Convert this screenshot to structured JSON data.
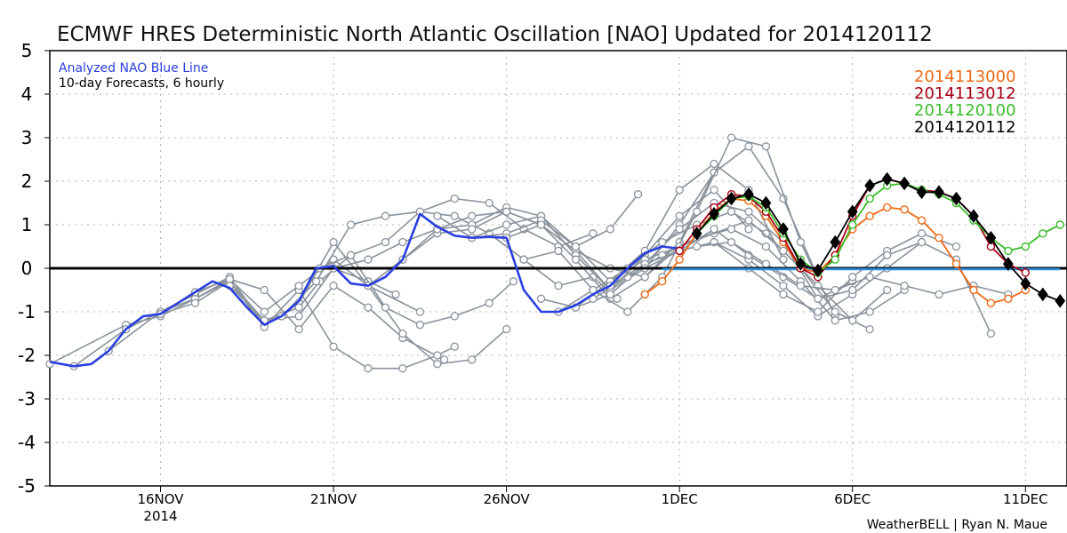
{
  "chart_data": {
    "type": "line",
    "title": "ECMWF HRES Deterministic North Atlantic Oscillation [NAO] Updated for 2014120112",
    "ylim": [
      -5,
      5
    ],
    "y_ticks": [
      "5",
      "4",
      "3",
      "2",
      "1",
      "0",
      "-1",
      "-2",
      "-3",
      "-4",
      "-5"
    ],
    "y_tick_values": [
      5,
      4,
      3,
      2,
      1,
      0,
      -1,
      -2,
      -3,
      -4,
      -5
    ],
    "x_tick_labels": [
      "16NOV",
      "21NOV",
      "26NOV",
      "1DEC",
      "6DEC",
      "11DEC"
    ],
    "x_year_label": "2014",
    "x_domain_days": [
      -3.2,
      26.2
    ],
    "x_tick_days": [
      0,
      5,
      10,
      15,
      20,
      25
    ],
    "x_grid_days": [
      0,
      5,
      10,
      15,
      20,
      25
    ],
    "grid": "dotted",
    "annotation_title": "Analyzed NAO Blue Line",
    "annotation_sub": "10-day Forecasts, 6 hourly",
    "credit": "WeatherBELL | Ryan N. Maue",
    "legend_position": "top-right",
    "legend": [
      {
        "label": "2014113000",
        "color": "#ee6a15"
      },
      {
        "label": "2014113012",
        "color": "#a80016"
      },
      {
        "label": "2014120100",
        "color": "#3bbd2b"
      },
      {
        "label": "2014120112",
        "color": "#000000"
      }
    ],
    "colors": {
      "analysis": "#2a3fe0",
      "past_forecasts": "#8a939c",
      "zero_line": "#000000",
      "forecast_mean": "#2c8ee0"
    },
    "analysis": {
      "name": "Analyzed NAO Blue Line",
      "x": [
        -3.2,
        -2.5,
        -2,
        -1.5,
        -1,
        -0.5,
        0,
        0.5,
        1,
        1.5,
        2,
        2.5,
        3,
        3.5,
        4,
        4.5,
        5,
        5.5,
        6,
        6.5,
        7,
        7.5,
        8,
        8.5,
        9,
        9.5,
        10,
        10.5,
        11,
        11.5,
        12,
        12.5,
        13,
        13.5,
        14,
        14.5,
        15
      ],
      "y": [
        -2.15,
        -2.25,
        -2.2,
        -1.9,
        -1.4,
        -1.1,
        -1.05,
        -0.8,
        -0.55,
        -0.3,
        -0.45,
        -0.9,
        -1.3,
        -1.1,
        -0.75,
        0.0,
        0.05,
        -0.35,
        -0.4,
        -0.2,
        0.2,
        1.25,
        0.95,
        0.75,
        0.7,
        0.72,
        0.7,
        -0.5,
        -1.0,
        -1.0,
        -0.85,
        -0.6,
        -0.4,
        0.0,
        0.35,
        0.5,
        0.45
      ]
    },
    "past_forecasts": [
      {
        "x": [
          -3.2,
          -1,
          0,
          1,
          2,
          3,
          4,
          5,
          6,
          6.8
        ],
        "y": [
          -2.2,
          -1.3,
          -1.1,
          -0.7,
          -0.3,
          -1.2,
          -1.1,
          0.0,
          -0.3,
          -0.6
        ]
      },
      {
        "x": [
          -2.5,
          -1,
          0,
          1,
          2,
          3,
          4,
          5,
          6,
          7.5
        ],
        "y": [
          -2.25,
          -1.4,
          -1.0,
          -0.6,
          -0.2,
          -1.3,
          -0.8,
          0.6,
          -0.4,
          -1.0
        ]
      },
      {
        "x": [
          -1.5,
          0,
          1,
          2,
          3,
          4,
          5,
          6,
          7,
          8.2
        ],
        "y": [
          -1.9,
          -1.0,
          -0.7,
          -0.25,
          -0.5,
          -1.4,
          -0.4,
          -0.9,
          -1.6,
          -2.1
        ]
      },
      {
        "x": [
          0,
          1,
          2,
          3,
          4,
          5,
          6,
          7,
          8,
          8.5
        ],
        "y": [
          -1.05,
          -0.8,
          -0.3,
          -1.35,
          -0.5,
          -1.8,
          -2.3,
          -2.3,
          -2.0,
          -1.8
        ]
      },
      {
        "x": [
          1,
          2,
          3,
          4,
          5,
          6,
          7,
          8,
          9,
          10
        ],
        "y": [
          -0.55,
          -0.25,
          -1.0,
          -0.4,
          0.2,
          -0.4,
          -1.5,
          -2.2,
          -2.1,
          -1.4
        ]
      },
      {
        "x": [
          2,
          3,
          4,
          4.6,
          5.5,
          6.5,
          7.5,
          8.5,
          9.5,
          10.2
        ],
        "y": [
          -0.4,
          -1.2,
          -0.9,
          -0.3,
          0.3,
          -0.9,
          -1.3,
          -1.1,
          -0.8,
          -0.3
        ]
      },
      {
        "x": [
          3.5,
          4.5,
          5.5,
          6.5,
          7.5,
          8.5,
          9.5,
          10.5,
          11.5,
          12.5
        ],
        "y": [
          -1.1,
          -0.3,
          1.0,
          1.2,
          1.3,
          1.6,
          1.5,
          0.9,
          0.5,
          0.8
        ]
      },
      {
        "x": [
          4.6,
          5.5,
          6.5,
          7.5,
          8.5,
          9.5,
          10.5,
          11.5,
          12.5,
          13.2
        ],
        "y": [
          0.0,
          0.3,
          0.6,
          1.3,
          1.2,
          0.8,
          0.2,
          -0.4,
          -0.2,
          -0.7
        ]
      },
      {
        "x": [
          5,
          6,
          7,
          8,
          9,
          10,
          11,
          12,
          13,
          13.8
        ],
        "y": [
          0.0,
          0.2,
          0.6,
          0.9,
          1.0,
          1.4,
          1.2,
          0.5,
          0.9,
          1.7
        ]
      },
      {
        "x": [
          6,
          7,
          8,
          9,
          10,
          11,
          12,
          13,
          14,
          15
        ],
        "y": [
          -0.4,
          0.2,
          0.8,
          0.9,
          1.3,
          1.0,
          0.4,
          0.0,
          -0.2,
          0.5
        ]
      },
      {
        "x": [
          7,
          8,
          9,
          10,
          11,
          12,
          13,
          14,
          15,
          16
        ],
        "y": [
          0.2,
          0.9,
          1.2,
          1.3,
          1.0,
          0.4,
          -0.5,
          0.0,
          1.0,
          2.2
        ]
      },
      {
        "x": [
          8,
          9,
          10,
          11,
          12,
          13,
          14,
          15,
          16,
          17
        ],
        "y": [
          1.2,
          0.7,
          1.0,
          1.2,
          0.3,
          -0.5,
          0.3,
          1.2,
          1.8,
          0.9
        ]
      },
      {
        "x": [
          9,
          10,
          11,
          12,
          13,
          14,
          15,
          16,
          17,
          18
        ],
        "y": [
          0.7,
          0.8,
          1.1,
          0.5,
          -0.3,
          0.4,
          1.8,
          2.4,
          1.8,
          0.2
        ]
      },
      {
        "x": [
          10,
          11,
          12,
          13,
          14,
          15,
          16,
          17,
          18,
          19
        ],
        "y": [
          0.7,
          1.0,
          0.2,
          -0.7,
          -0.2,
          0.6,
          2.2,
          2.8,
          1.6,
          -0.2
        ]
      },
      {
        "x": [
          10.5,
          11.5,
          12.5,
          13.5,
          14.5,
          15.5,
          16.5,
          17.5,
          18.5,
          19.5
        ],
        "y": [
          0.2,
          0.4,
          -0.5,
          -1.0,
          -0.2,
          1.3,
          3.0,
          2.8,
          0.6,
          -1.1
        ]
      },
      {
        "x": [
          11,
          12,
          13,
          14,
          15,
          16,
          17,
          18,
          19,
          20
        ],
        "y": [
          -0.7,
          -0.9,
          -0.6,
          0.1,
          0.9,
          1.5,
          1.3,
          0.6,
          -0.7,
          -0.3
        ]
      },
      {
        "x": [
          11.5,
          12.5,
          13.5,
          14.5,
          15.5,
          16.5,
          17.5,
          18.5,
          19.5,
          20.5
        ],
        "y": [
          -1.0,
          -0.5,
          0.0,
          0.6,
          1.0,
          1.3,
          0.8,
          0.0,
          -1.0,
          -1.4
        ]
      },
      {
        "x": [
          12,
          13,
          14,
          15,
          16,
          17,
          18,
          19,
          20,
          21
        ],
        "y": [
          -0.9,
          -0.3,
          0.2,
          0.5,
          0.8,
          1.1,
          0.4,
          -0.4,
          -1.2,
          -0.5
        ]
      },
      {
        "x": [
          12.5,
          13.5,
          14.5,
          15.5,
          16.5,
          17.5,
          18.5,
          19.5,
          20.5,
          21.5
        ],
        "y": [
          -0.7,
          -0.2,
          0.3,
          0.7,
          0.9,
          0.5,
          -0.3,
          -1.2,
          -1.0,
          -0.5
        ]
      },
      {
        "x": [
          13,
          14,
          15,
          16,
          17,
          18,
          19,
          20,
          21,
          22
        ],
        "y": [
          -0.4,
          0.1,
          0.4,
          0.6,
          0.2,
          -0.4,
          -1.1,
          -0.6,
          0.0,
          0.6
        ]
      },
      {
        "x": [
          14,
          15,
          16,
          17,
          18,
          19,
          20,
          21,
          22,
          23
        ],
        "y": [
          0.0,
          0.4,
          0.6,
          0.0,
          -0.6,
          -1.0,
          -0.2,
          0.4,
          0.8,
          0.5
        ]
      },
      {
        "x": [
          15,
          16,
          17,
          18,
          19,
          20,
          21,
          22,
          23,
          24
        ],
        "y": [
          0.4,
          0.9,
          0.3,
          -0.2,
          -0.7,
          -0.5,
          0.3,
          0.6,
          0.2,
          -1.5
        ]
      },
      {
        "x": [
          15.5,
          16.5,
          17.5,
          18.5,
          19.5,
          20.5,
          21.5,
          22.5,
          23.5,
          24.5
        ],
        "y": [
          0.5,
          0.6,
          0.1,
          -0.4,
          -0.5,
          -0.2,
          -0.4,
          -0.6,
          -0.4,
          -0.6
        ]
      }
    ],
    "forecasts": [
      {
        "name": "2014113000",
        "color": "#ee6a15",
        "marker": "open-circle",
        "x": [
          14,
          14.5,
          15,
          15.5,
          16,
          16.5,
          17,
          17.5,
          18,
          18.5,
          19,
          19.5,
          20,
          20.5,
          21,
          21.5,
          22,
          22.5,
          23,
          23.5,
          24,
          24.5,
          25
        ],
        "y": [
          -0.6,
          -0.3,
          0.2,
          0.8,
          1.3,
          1.6,
          1.55,
          1.2,
          0.6,
          0.0,
          -0.1,
          0.3,
          0.9,
          1.2,
          1.4,
          1.35,
          1.1,
          0.7,
          0.1,
          -0.5,
          -0.8,
          -0.7,
          -0.5
        ]
      },
      {
        "name": "2014113012",
        "color": "#a80016",
        "marker": "open-circle",
        "x": [
          15,
          15.5,
          16,
          16.5,
          17,
          17.5,
          18,
          18.5,
          19,
          19.5,
          20,
          20.5,
          21,
          21.5,
          22,
          22.5,
          23,
          23.5,
          24,
          24.5,
          25
        ],
        "y": [
          0.4,
          0.9,
          1.4,
          1.7,
          1.65,
          1.3,
          0.7,
          0.0,
          -0.2,
          0.3,
          1.2,
          1.9,
          2.05,
          1.95,
          1.8,
          1.75,
          1.6,
          1.2,
          0.5,
          0.1,
          -0.1
        ]
      },
      {
        "name": "2014120100",
        "color": "#3bbd2b",
        "marker": "open-circle",
        "x": [
          15.5,
          16,
          16.5,
          17,
          17.5,
          18,
          18.5,
          19,
          19.5,
          20,
          20.5,
          21,
          21.5,
          22,
          22.5,
          23,
          23.5,
          24,
          24.5,
          25,
          25.5,
          26
        ],
        "y": [
          0.8,
          1.2,
          1.6,
          1.65,
          1.4,
          0.8,
          0.2,
          -0.1,
          0.2,
          1.0,
          1.6,
          1.9,
          1.95,
          1.8,
          1.7,
          1.5,
          1.1,
          0.7,
          0.4,
          0.5,
          0.8,
          1.0
        ]
      },
      {
        "name": "2014120112",
        "color": "#000000",
        "marker": "filled-diamond",
        "x": [
          15.5,
          16,
          16.5,
          17,
          17.5,
          18,
          18.5,
          19,
          19.5,
          20,
          20.5,
          21,
          21.5,
          22,
          22.5,
          23,
          23.5,
          24,
          24.5,
          25,
          25.5,
          26
        ],
        "y": [
          0.8,
          1.25,
          1.6,
          1.7,
          1.5,
          0.9,
          0.1,
          -0.05,
          0.6,
          1.3,
          1.9,
          2.05,
          1.95,
          1.75,
          1.75,
          1.6,
          1.2,
          0.7,
          0.1,
          -0.35,
          -0.6,
          -0.75
        ]
      }
    ],
    "zero_line": {
      "y": 0
    },
    "forecast_mean_line": {
      "y": 0,
      "x_start": 14.5,
      "x_end": 26
    }
  }
}
